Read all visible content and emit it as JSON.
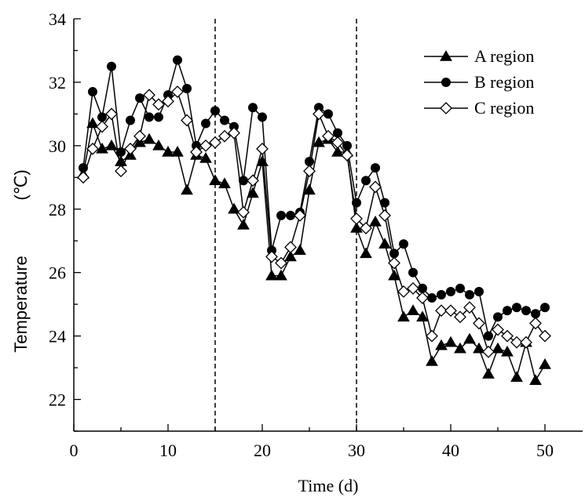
{
  "chart_data": {
    "type": "line",
    "title": "",
    "xlabel": "Time (d)",
    "ylabel": "Temperature",
    "ylabel_unit": "(℃)",
    "xlim": [
      0,
      54
    ],
    "ylim": [
      21,
      34
    ],
    "xticks": [
      0,
      10,
      20,
      30,
      40,
      50
    ],
    "yticks": [
      22,
      24,
      26,
      28,
      30,
      32,
      34
    ],
    "grid": false,
    "legend_position": "top-right",
    "vlines": [
      15,
      30
    ],
    "x": [
      1,
      2,
      3,
      4,
      5,
      6,
      7,
      8,
      9,
      10,
      11,
      12,
      13,
      14,
      15,
      16,
      17,
      18,
      19,
      20,
      21,
      22,
      23,
      24,
      25,
      26,
      27,
      28,
      29,
      30,
      31,
      32,
      33,
      34,
      35,
      36,
      37,
      38,
      39,
      40,
      41,
      42,
      43,
      44,
      45,
      46,
      47,
      48,
      49,
      50
    ],
    "series": [
      {
        "name": "A region",
        "marker": "filled-triangle",
        "values": [
          29.1,
          30.7,
          29.9,
          30.0,
          29.5,
          29.7,
          30.1,
          30.2,
          30.0,
          29.8,
          29.8,
          28.6,
          29.7,
          29.6,
          28.9,
          28.8,
          28.0,
          27.5,
          28.5,
          29.5,
          25.9,
          25.9,
          26.5,
          26.7,
          28.6,
          30.1,
          30.2,
          29.8,
          29.8,
          27.4,
          26.6,
          27.6,
          26.9,
          25.9,
          24.6,
          24.8,
          24.6,
          23.2,
          23.7,
          23.8,
          23.6,
          23.9,
          23.6,
          22.8,
          23.6,
          23.5,
          22.7,
          23.8,
          22.6,
          23.1
        ]
      },
      {
        "name": "B region",
        "marker": "filled-circle",
        "values": [
          29.3,
          31.7,
          30.9,
          32.5,
          29.8,
          30.8,
          31.5,
          30.9,
          30.9,
          31.6,
          32.7,
          31.8,
          30.0,
          30.7,
          31.1,
          30.8,
          30.6,
          28.9,
          31.2,
          30.9,
          26.7,
          27.8,
          27.8,
          27.9,
          29.5,
          31.2,
          31.0,
          30.4,
          30.0,
          28.2,
          28.9,
          29.3,
          28.2,
          26.6,
          26.9,
          26.0,
          25.5,
          25.2,
          25.3,
          25.4,
          25.5,
          25.3,
          25.4,
          24.0,
          24.6,
          24.8,
          24.9,
          24.8,
          24.7,
          24.9
        ]
      },
      {
        "name": "C region",
        "marker": "open-diamond",
        "values": [
          29.0,
          29.9,
          30.6,
          31.0,
          29.2,
          29.9,
          30.3,
          31.6,
          31.3,
          31.4,
          31.7,
          30.8,
          29.8,
          30.0,
          30.1,
          30.3,
          30.4,
          27.9,
          28.9,
          29.9,
          26.5,
          26.3,
          26.8,
          27.8,
          29.2,
          31.0,
          30.3,
          30.1,
          29.7,
          27.7,
          27.4,
          28.7,
          27.8,
          26.3,
          25.4,
          25.5,
          25.2,
          24.0,
          24.8,
          24.8,
          24.6,
          24.9,
          24.4,
          23.5,
          24.2,
          24.0,
          23.8,
          23.8,
          24.4,
          24.0
        ]
      }
    ]
  }
}
